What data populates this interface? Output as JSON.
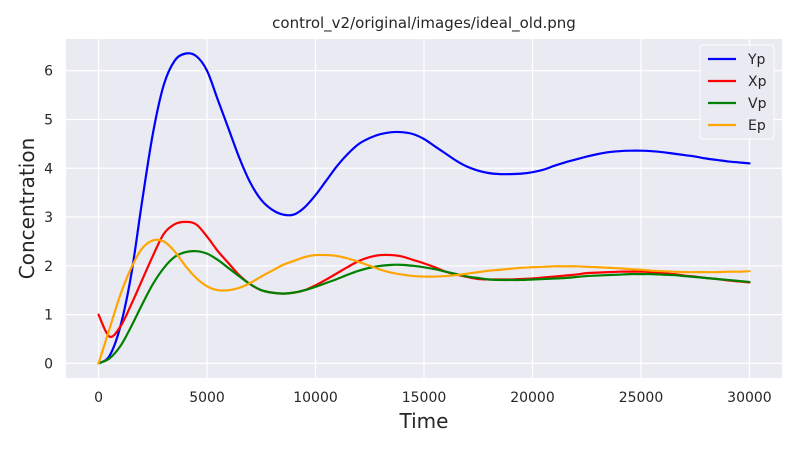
{
  "chart_data": {
    "type": "line",
    "title": "control_v2/original/images/ideal_old.png",
    "xlabel": "Time",
    "ylabel": "Concentration",
    "xlim": [
      -1500,
      31500
    ],
    "ylim": [
      -0.3,
      6.65
    ],
    "xticks": [
      0,
      5000,
      10000,
      15000,
      20000,
      25000,
      30000
    ],
    "xtick_labels": [
      "0",
      "5000",
      "10000",
      "15000",
      "20000",
      "25000",
      "30000"
    ],
    "yticks": [
      0,
      1,
      2,
      3,
      4,
      5,
      6
    ],
    "ytick_labels": [
      "0",
      "1",
      "2",
      "3",
      "4",
      "5",
      "6"
    ],
    "grid": true,
    "legend_position": "top-right",
    "x": [
      0,
      500,
      1000,
      1500,
      2000,
      2500,
      3000,
      3500,
      4000,
      4500,
      5000,
      5500,
      6000,
      6500,
      7000,
      7500,
      8000,
      8500,
      9000,
      9500,
      10000,
      10500,
      11000,
      11500,
      12000,
      12500,
      13000,
      13500,
      14000,
      14500,
      15000,
      15500,
      16000,
      16500,
      17000,
      17500,
      18000,
      18500,
      19000,
      19500,
      20000,
      20500,
      21000,
      21500,
      22000,
      22500,
      23000,
      23500,
      24000,
      24500,
      25000,
      25500,
      26000,
      26500,
      27000,
      27500,
      28000,
      28500,
      29000,
      29500,
      30000
    ],
    "series": [
      {
        "name": "Yp",
        "color": "#0000ff",
        "values": [
          0,
          0.15,
          0.75,
          1.8,
          3.3,
          4.7,
          5.7,
          6.2,
          6.35,
          6.3,
          6.0,
          5.4,
          4.8,
          4.2,
          3.7,
          3.35,
          3.15,
          3.05,
          3.05,
          3.2,
          3.45,
          3.75,
          4.05,
          4.3,
          4.5,
          4.62,
          4.7,
          4.74,
          4.74,
          4.7,
          4.6,
          4.45,
          4.3,
          4.15,
          4.03,
          3.95,
          3.9,
          3.88,
          3.88,
          3.89,
          3.92,
          3.97,
          4.05,
          4.12,
          4.18,
          4.24,
          4.29,
          4.33,
          4.35,
          4.36,
          4.36,
          4.35,
          4.33,
          4.3,
          4.27,
          4.24,
          4.2,
          4.17,
          4.14,
          4.12,
          4.1
        ]
      },
      {
        "name": "Xp",
        "color": "#ff0000",
        "values": [
          1.0,
          0.55,
          0.75,
          1.2,
          1.7,
          2.2,
          2.65,
          2.85,
          2.9,
          2.85,
          2.6,
          2.3,
          2.05,
          1.8,
          1.62,
          1.5,
          1.45,
          1.43,
          1.45,
          1.5,
          1.6,
          1.72,
          1.85,
          1.98,
          2.1,
          2.18,
          2.22,
          2.22,
          2.19,
          2.12,
          2.05,
          1.97,
          1.88,
          1.82,
          1.77,
          1.73,
          1.72,
          1.72,
          1.72,
          1.73,
          1.74,
          1.76,
          1.78,
          1.8,
          1.82,
          1.85,
          1.86,
          1.87,
          1.88,
          1.88,
          1.88,
          1.87,
          1.85,
          1.83,
          1.8,
          1.78,
          1.75,
          1.73,
          1.7,
          1.68,
          1.66
        ]
      },
      {
        "name": "Vp",
        "color": "#008000",
        "values": [
          0,
          0.1,
          0.35,
          0.75,
          1.2,
          1.62,
          1.95,
          2.18,
          2.28,
          2.3,
          2.25,
          2.12,
          1.95,
          1.78,
          1.62,
          1.5,
          1.45,
          1.43,
          1.45,
          1.5,
          1.57,
          1.65,
          1.73,
          1.82,
          1.9,
          1.96,
          2.0,
          2.02,
          2.02,
          2.0,
          1.97,
          1.93,
          1.88,
          1.83,
          1.78,
          1.75,
          1.72,
          1.71,
          1.71,
          1.71,
          1.72,
          1.73,
          1.74,
          1.75,
          1.77,
          1.79,
          1.8,
          1.81,
          1.82,
          1.83,
          1.83,
          1.83,
          1.82,
          1.81,
          1.79,
          1.77,
          1.75,
          1.73,
          1.71,
          1.69,
          1.67
        ]
      },
      {
        "name": "Ep",
        "color": "#ffa500",
        "values": [
          0,
          0.7,
          1.4,
          1.95,
          2.35,
          2.52,
          2.5,
          2.3,
          2.0,
          1.75,
          1.58,
          1.5,
          1.5,
          1.55,
          1.65,
          1.78,
          1.9,
          2.02,
          2.1,
          2.18,
          2.22,
          2.22,
          2.2,
          2.15,
          2.08,
          2.0,
          1.92,
          1.86,
          1.82,
          1.79,
          1.78,
          1.78,
          1.79,
          1.81,
          1.84,
          1.87,
          1.9,
          1.92,
          1.94,
          1.96,
          1.97,
          1.98,
          1.99,
          1.99,
          1.99,
          1.98,
          1.97,
          1.96,
          1.95,
          1.93,
          1.92,
          1.9,
          1.89,
          1.88,
          1.87,
          1.87,
          1.87,
          1.87,
          1.88,
          1.88,
          1.89
        ]
      }
    ]
  }
}
